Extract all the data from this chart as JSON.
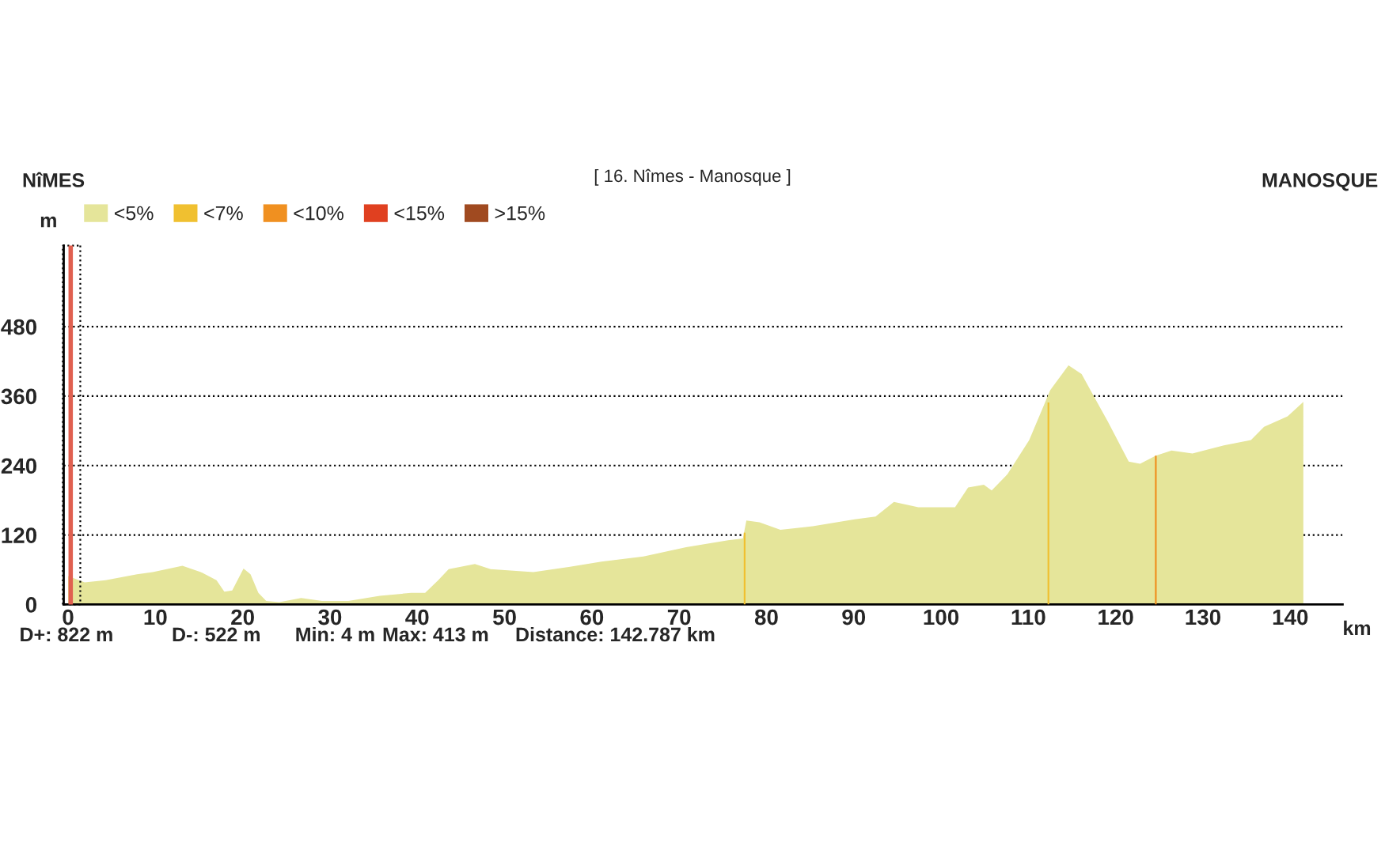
{
  "chart_data": {
    "type": "area",
    "title": "[ 16. Nîmes - Manosque ]",
    "xlabel": "km",
    "ylabel": "m",
    "annotations": [
      "NîMES",
      "MANOSQUE",
      "D+: 822 m",
      "D-: 522 m",
      "Min: 4 m",
      "Max: 413 m",
      "Distance: 142.787 km"
    ],
    "xlim": [
      -0.5,
      146
    ],
    "ylim": [
      0,
      620
    ],
    "xticks": [
      0,
      10,
      20,
      30,
      40,
      50,
      60,
      70,
      80,
      90,
      100,
      110,
      120,
      130,
      140
    ],
    "yticks": [
      0,
      120,
      240,
      360,
      480
    ],
    "grid": "y",
    "ref_lines": [
      {
        "axis": "x",
        "value": 0.3,
        "color": "#e06050",
        "line_style": "solid"
      }
    ],
    "legend": "top left",
    "line_style": "dotted",
    "series": [
      {
        "name": "<5%",
        "color": "#e5e59a",
        "x": [
          0,
          1.9,
          4.3,
          7.9,
          9.7,
          13.1,
          15.2,
          17.0,
          17.9,
          18.8,
          20.1,
          20.9,
          21.8,
          22.7,
          24.2,
          26.7,
          29.1,
          32.1,
          35.7,
          39.3,
          40.9,
          42.4,
          43.6,
          46.6,
          48.4,
          53.3,
          57.5,
          61.1,
          65.9,
          70.8,
          75.6,
          77.3,
          77.7,
          79.2,
          81.6,
          85.3,
          90.1,
          92.5,
          94.6,
          97.4,
          101.6,
          103.1,
          104.9,
          105.8,
          107.6,
          110.1,
          112.5,
          114.6,
          116.1,
          119.1,
          121.5,
          122.8,
          124.6,
          126.4,
          128.8,
          132.4,
          135.5,
          137.0,
          139.7,
          141.5
        ],
        "values": [
          49,
          38,
          42,
          52,
          56,
          67,
          56,
          42,
          22,
          24,
          62,
          52,
          20,
          6,
          4,
          11,
          6,
          6,
          15,
          20,
          20,
          42,
          61,
          70,
          61,
          56,
          65,
          74,
          83,
          99,
          111,
          114,
          145,
          142,
          129,
          135,
          147,
          152,
          177,
          168,
          168,
          202,
          207,
          197,
          225,
          284,
          370,
          413,
          398,
          316,
          247,
          243,
          257,
          266,
          261,
          275,
          284,
          307,
          325,
          350
        ]
      },
      {
        "name": "<7%",
        "type": "bar",
        "color": "#f0c030",
        "x": [
          77.5,
          112.3
        ],
        "values": [
          124,
          349
        ]
      },
      {
        "name": "<10%",
        "type": "bar",
        "color": "#f09020",
        "x": [
          124.6
        ],
        "values": [
          257
        ]
      },
      {
        "name": "<15%",
        "type": "bar",
        "color": "#e04020"
      },
      {
        "name": ">15%",
        "type": "bar",
        "color": "#a04a20"
      }
    ]
  }
}
